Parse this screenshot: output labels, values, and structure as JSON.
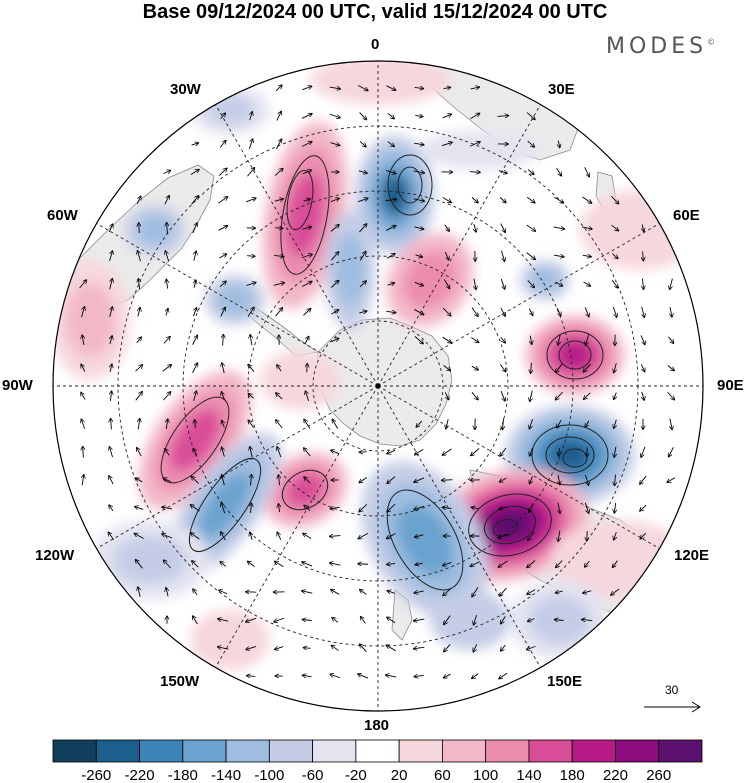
{
  "title": "Base 09/12/2024 00 UTC, valid 15/12/2024 00 UTC",
  "brand": "MODES",
  "brand_mark": "©",
  "lon_labels": {
    "lon_0": "0",
    "lon_30e": "30E",
    "lon_60e": "60E",
    "lon_90e": "90E",
    "lon_120e": "120E",
    "lon_150e": "150E",
    "lon_180": "180",
    "lon_150w": "150W",
    "lon_120w": "120W",
    "lon_90w": "90W",
    "lon_60w": "60W",
    "lon_30w": "30W"
  },
  "vector_scale_label": "30",
  "colorbar": {
    "ticks": [
      "-260",
      "-220",
      "-180",
      "-140",
      "-100",
      "-60",
      "-20",
      "20",
      "60",
      "100",
      "140",
      "180",
      "220",
      "260"
    ],
    "colors": [
      "#123f5c",
      "#1b5f8e",
      "#3d85b8",
      "#6aa3cf",
      "#9fbde0",
      "#c5cde6",
      "#e4e4f1",
      "#ffffff",
      "#f6d7dc",
      "#f3b8c8",
      "#ec8db0",
      "#d94d98",
      "#b81b88",
      "#8a0c7e",
      "#5c1070"
    ]
  },
  "colors": {
    "land": "#ebebeb",
    "coast": "#8a8a8a",
    "grid": "#222222"
  }
}
